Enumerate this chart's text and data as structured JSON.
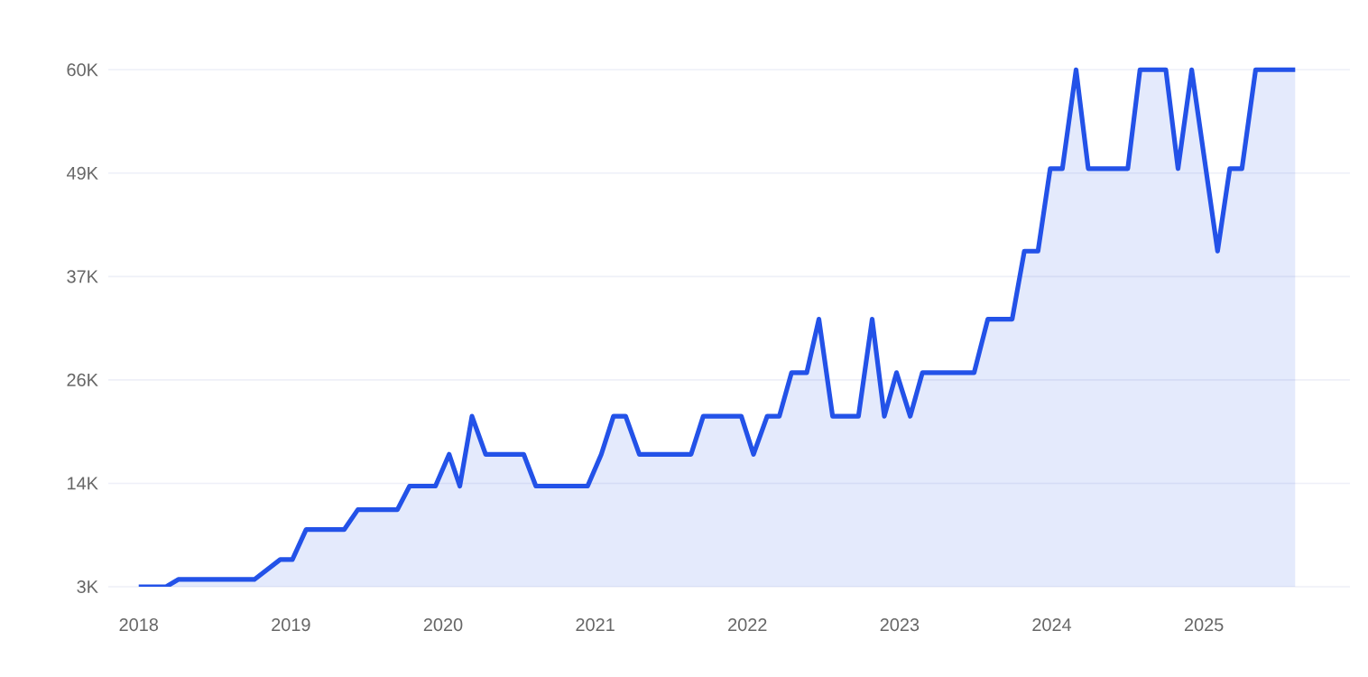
{
  "chart_data": {
    "type": "area",
    "color": "#2352e8",
    "grid": "y",
    "marker": "none",
    "line_style": "solid",
    "x": [
      2018.0,
      2018.18,
      2018.26,
      2018.76,
      2018.93,
      2019.01,
      2019.1,
      2019.35,
      2019.44,
      2019.7,
      2019.78,
      2019.95,
      2020.04,
      2020.11,
      2020.19,
      2020.28,
      2020.53,
      2020.61,
      2020.95,
      2021.04,
      2021.12,
      2021.2,
      2021.29,
      2021.63,
      2021.71,
      2021.96,
      2022.04,
      2022.13,
      2022.21,
      2022.29,
      2022.39,
      2022.47,
      2022.56,
      2022.73,
      2022.82,
      2022.9,
      2022.98,
      2023.07,
      2023.15,
      2023.49,
      2023.58,
      2023.74,
      2023.82,
      2023.91,
      2023.99,
      2024.07,
      2024.16,
      2024.24,
      2024.5,
      2024.58,
      2024.75,
      2024.83,
      2024.92,
      2025.09,
      2025.17,
      2025.25,
      2025.34,
      2025.6
    ],
    "values": [
      3000,
      3000,
      3800,
      3800,
      6000,
      6000,
      9300,
      9300,
      11500,
      11500,
      14100,
      14100,
      17600,
      14100,
      21800,
      17600,
      17600,
      14100,
      14100,
      17600,
      21800,
      21800,
      17600,
      17600,
      21800,
      21800,
      17600,
      21800,
      21800,
      26600,
      26600,
      32500,
      21800,
      21800,
      32500,
      21800,
      26600,
      21800,
      26600,
      26600,
      32500,
      32500,
      40000,
      40000,
      49100,
      49100,
      60000,
      49100,
      49100,
      60000,
      60000,
      49100,
      60000,
      40000,
      49100,
      49100,
      60000,
      60000
    ],
    "xlim": [
      2017.8,
      2025.96
    ],
    "ylim": [
      3000,
      60000
    ],
    "xticks": [
      2018,
      2019,
      2020,
      2021,
      2022,
      2023,
      2024,
      2025
    ],
    "yticks": [
      {
        "value": 3000,
        "label": "3K"
      },
      {
        "value": 14400,
        "label": "14K"
      },
      {
        "value": 25800,
        "label": "26K"
      },
      {
        "value": 37200,
        "label": "37K"
      },
      {
        "value": 48600,
        "label": "49K"
      },
      {
        "value": 60000,
        "label": "60K"
      }
    ]
  }
}
